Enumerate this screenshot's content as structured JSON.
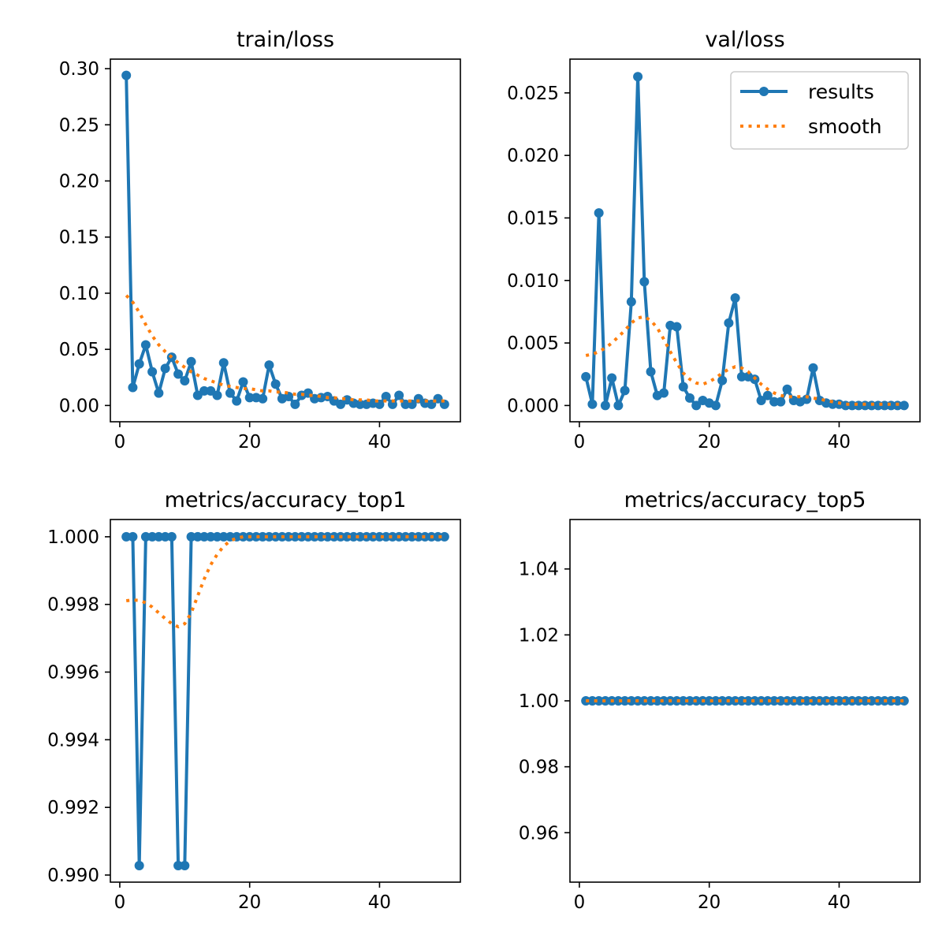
{
  "chart_data": [
    {
      "type": "line",
      "title": "train/loss",
      "xlim": [
        -1.45,
        52.45
      ],
      "ylim": [
        -0.0145,
        0.3085
      ],
      "xticks": [
        0,
        20,
        40
      ],
      "xtick_labels": [
        "0",
        "20",
        "40"
      ],
      "yticks": [
        0.0,
        0.05,
        0.1,
        0.15,
        0.2,
        0.25,
        0.3
      ],
      "ytick_labels": [
        "0.00",
        "0.05",
        "0.10",
        "0.15",
        "0.20",
        "0.25",
        "0.30"
      ],
      "grid": false,
      "x": [
        1,
        2,
        3,
        4,
        5,
        6,
        7,
        8,
        9,
        10,
        11,
        12,
        13,
        14,
        15,
        16,
        17,
        18,
        19,
        20,
        21,
        22,
        23,
        24,
        25,
        26,
        27,
        28,
        29,
        30,
        31,
        32,
        33,
        34,
        35,
        36,
        37,
        38,
        39,
        40,
        41,
        42,
        43,
        44,
        45,
        46,
        47,
        48,
        49,
        50
      ],
      "series": [
        {
          "name": "results",
          "style": "line-marker",
          "color": "#1f77b4",
          "values": [
            0.294,
            0.016,
            0.037,
            0.054,
            0.03,
            0.011,
            0.033,
            0.043,
            0.028,
            0.022,
            0.039,
            0.009,
            0.013,
            0.013,
            0.009,
            0.038,
            0.011,
            0.004,
            0.021,
            0.007,
            0.007,
            0.006,
            0.036,
            0.019,
            0.006,
            0.008,
            0.001,
            0.009,
            0.011,
            0.006,
            0.007,
            0.008,
            0.004,
            0.001,
            0.005,
            0.002,
            0.001,
            0.001,
            0.002,
            0.001,
            0.008,
            0.001,
            0.009,
            0.001,
            0.001,
            0.006,
            0.002,
            0.001,
            0.006,
            0.001
          ]
        },
        {
          "name": "smooth",
          "style": "dotted",
          "color": "#ff7f0e",
          "values": [
            0.098,
            0.092,
            0.083,
            0.072,
            0.062,
            0.054,
            0.048,
            0.043,
            0.038,
            0.034,
            0.03,
            0.027,
            0.024,
            0.022,
            0.02,
            0.018,
            0.017,
            0.016,
            0.015,
            0.015,
            0.014,
            0.013,
            0.013,
            0.012,
            0.012,
            0.011,
            0.01,
            0.01,
            0.009,
            0.009,
            0.008,
            0.007,
            0.007,
            0.006,
            0.006,
            0.005,
            0.005,
            0.005,
            0.004,
            0.004,
            0.004,
            0.004,
            0.004,
            0.004,
            0.004,
            0.004,
            0.004,
            0.004,
            0.004,
            0.004
          ]
        }
      ]
    },
    {
      "type": "line",
      "title": "val/loss",
      "xlim": [
        -1.45,
        52.45
      ],
      "ylim": [
        -0.0013,
        0.0277
      ],
      "xticks": [
        0,
        20,
        40
      ],
      "xtick_labels": [
        "0",
        "20",
        "40"
      ],
      "yticks": [
        0.0,
        0.005,
        0.01,
        0.015,
        0.02,
        0.025
      ],
      "ytick_labels": [
        "0.000",
        "0.005",
        "0.010",
        "0.015",
        "0.020",
        "0.025"
      ],
      "grid": false,
      "legend": {
        "position": "top-right",
        "entries": [
          "results",
          "smooth"
        ]
      },
      "x": [
        1,
        2,
        3,
        4,
        5,
        6,
        7,
        8,
        9,
        10,
        11,
        12,
        13,
        14,
        15,
        16,
        17,
        18,
        19,
        20,
        21,
        22,
        23,
        24,
        25,
        26,
        27,
        28,
        29,
        30,
        31,
        32,
        33,
        34,
        35,
        36,
        37,
        38,
        39,
        40,
        41,
        42,
        43,
        44,
        45,
        46,
        47,
        48,
        49,
        50
      ],
      "series": [
        {
          "name": "results",
          "style": "line-marker",
          "color": "#1f77b4",
          "values": [
            0.0023,
            0.0001,
            0.0154,
            0.0,
            0.0022,
            0.0,
            0.0012,
            0.0083,
            0.0263,
            0.0099,
            0.0027,
            0.0008,
            0.001,
            0.0064,
            0.0063,
            0.0015,
            0.0006,
            0.0,
            0.0004,
            0.0002,
            0.0,
            0.002,
            0.0066,
            0.0086,
            0.0023,
            0.0023,
            0.0021,
            0.0004,
            0.0008,
            0.0003,
            0.0003,
            0.0013,
            0.0004,
            0.0003,
            0.0005,
            0.003,
            0.0004,
            0.0002,
            0.0001,
            0.0001,
            0.0,
            0.0,
            0.0,
            0.0,
            0.0,
            0.0,
            0.0,
            0.0,
            0.0,
            0.0
          ]
        },
        {
          "name": "smooth",
          "style": "dotted",
          "color": "#ff7f0e",
          "values": [
            0.004,
            0.0041,
            0.0043,
            0.0046,
            0.005,
            0.0055,
            0.006,
            0.0066,
            0.007,
            0.0071,
            0.0068,
            0.0062,
            0.0053,
            0.0043,
            0.0034,
            0.0026,
            0.0021,
            0.0018,
            0.0017,
            0.0019,
            0.0022,
            0.0026,
            0.0029,
            0.0031,
            0.003,
            0.0027,
            0.0022,
            0.0017,
            0.0013,
            0.001,
            0.0008,
            0.0007,
            0.0007,
            0.0007,
            0.0007,
            0.0006,
            0.0005,
            0.0004,
            0.0003,
            0.0002,
            0.0001,
            0.0001,
            0.0001,
            0.0001,
            0.0001,
            0.0001,
            0.0001,
            0.0001,
            0.0001,
            0.0001
          ]
        }
      ]
    },
    {
      "type": "line",
      "title": "metrics/accuracy_top1",
      "xlim": [
        -1.45,
        52.45
      ],
      "ylim": [
        0.98979,
        1.00051
      ],
      "xticks": [
        0,
        20,
        40
      ],
      "xtick_labels": [
        "0",
        "20",
        "40"
      ],
      "yticks": [
        0.99,
        0.992,
        0.994,
        0.996,
        0.998,
        1.0
      ],
      "ytick_labels": [
        "0.990",
        "0.992",
        "0.994",
        "0.996",
        "0.998",
        "1.000"
      ],
      "grid": false,
      "x": [
        1,
        2,
        3,
        4,
        5,
        6,
        7,
        8,
        9,
        10,
        11,
        12,
        13,
        14,
        15,
        16,
        17,
        18,
        19,
        20,
        21,
        22,
        23,
        24,
        25,
        26,
        27,
        28,
        29,
        30,
        31,
        32,
        33,
        34,
        35,
        36,
        37,
        38,
        39,
        40,
        41,
        42,
        43,
        44,
        45,
        46,
        47,
        48,
        49,
        50
      ],
      "series": [
        {
          "name": "results",
          "style": "line-marker",
          "color": "#1f77b4",
          "values": [
            1.0,
            1.0,
            0.99028,
            1.0,
            1.0,
            1.0,
            1.0,
            1.0,
            0.99028,
            0.99028,
            1.0,
            1.0,
            1.0,
            1.0,
            1.0,
            1.0,
            1.0,
            1.0,
            1.0,
            1.0,
            1.0,
            1.0,
            1.0,
            1.0,
            1.0,
            1.0,
            1.0,
            1.0,
            1.0,
            1.0,
            1.0,
            1.0,
            1.0,
            1.0,
            1.0,
            1.0,
            1.0,
            1.0,
            1.0,
            1.0,
            1.0,
            1.0,
            1.0,
            1.0,
            1.0,
            1.0,
            1.0,
            1.0,
            1.0,
            1.0
          ]
        },
        {
          "name": "smooth",
          "style": "dotted",
          "color": "#ff7f0e",
          "values": [
            0.99811,
            0.99813,
            0.99812,
            0.99805,
            0.99792,
            0.99775,
            0.99758,
            0.99743,
            0.99734,
            0.99743,
            0.99775,
            0.99825,
            0.99875,
            0.99917,
            0.99948,
            0.99972,
            0.99988,
            0.99996,
            1.0,
            1.0,
            1.0,
            1.0,
            1.0,
            1.0,
            1.0,
            1.0,
            1.0,
            1.0,
            1.0,
            1.0,
            1.0,
            1.0,
            1.0,
            1.0,
            1.0,
            1.0,
            1.0,
            1.0,
            1.0,
            1.0,
            1.0,
            1.0,
            1.0,
            1.0,
            1.0,
            1.0,
            1.0,
            1.0,
            1.0,
            1.0
          ]
        }
      ]
    },
    {
      "type": "line",
      "title": "metrics/accuracy_top5",
      "xlim": [
        -1.45,
        52.45
      ],
      "ylim": [
        0.945,
        1.055
      ],
      "xticks": [
        0,
        20,
        40
      ],
      "xtick_labels": [
        "0",
        "20",
        "40"
      ],
      "yticks": [
        0.96,
        0.98,
        1.0,
        1.02,
        1.04
      ],
      "ytick_labels": [
        "0.96",
        "0.98",
        "1.00",
        "1.02",
        "1.04"
      ],
      "grid": false,
      "x": [
        1,
        2,
        3,
        4,
        5,
        6,
        7,
        8,
        9,
        10,
        11,
        12,
        13,
        14,
        15,
        16,
        17,
        18,
        19,
        20,
        21,
        22,
        23,
        24,
        25,
        26,
        27,
        28,
        29,
        30,
        31,
        32,
        33,
        34,
        35,
        36,
        37,
        38,
        39,
        40,
        41,
        42,
        43,
        44,
        45,
        46,
        47,
        48,
        49,
        50
      ],
      "series": [
        {
          "name": "results",
          "style": "line-marker",
          "color": "#1f77b4",
          "values": [
            1,
            1,
            1,
            1,
            1,
            1,
            1,
            1,
            1,
            1,
            1,
            1,
            1,
            1,
            1,
            1,
            1,
            1,
            1,
            1,
            1,
            1,
            1,
            1,
            1,
            1,
            1,
            1,
            1,
            1,
            1,
            1,
            1,
            1,
            1,
            1,
            1,
            1,
            1,
            1,
            1,
            1,
            1,
            1,
            1,
            1,
            1,
            1,
            1,
            1
          ]
        },
        {
          "name": "smooth",
          "style": "dotted",
          "color": "#ff7f0e",
          "values": [
            1,
            1,
            1,
            1,
            1,
            1,
            1,
            1,
            1,
            1,
            1,
            1,
            1,
            1,
            1,
            1,
            1,
            1,
            1,
            1,
            1,
            1,
            1,
            1,
            1,
            1,
            1,
            1,
            1,
            1,
            1,
            1,
            1,
            1,
            1,
            1,
            1,
            1,
            1,
            1,
            1,
            1,
            1,
            1,
            1,
            1,
            1,
            1,
            1,
            1
          ]
        }
      ]
    }
  ]
}
